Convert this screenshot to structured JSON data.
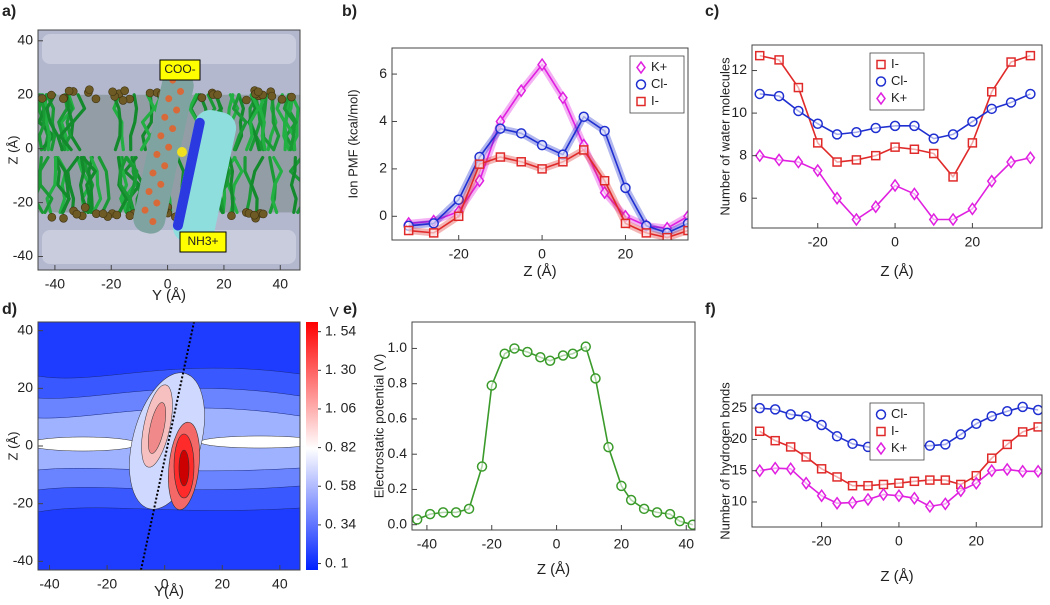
{
  "chart_data": [
    {
      "type": "image",
      "panel_label": "a)",
      "xlabel": "Y (Å)",
      "ylabel": "Z (Å)",
      "xlim": [
        -46,
        47
      ],
      "xticks": [
        -40,
        -20,
        0,
        20,
        40
      ],
      "ylim": [
        -45,
        44
      ],
      "yticks": [
        -40,
        -20,
        0,
        20,
        40
      ],
      "annotations": [
        "COO-",
        "NH3+"
      ]
    },
    {
      "type": "line",
      "panel_label": "b)",
      "xlabel": "Z (Å)",
      "ylabel": "Ion PMF (kcal/mol)",
      "xlim": [
        -36,
        35
      ],
      "xticks": [
        -20,
        0,
        20
      ],
      "ylim": [
        -1,
        7.1
      ],
      "yticks": [
        0,
        2,
        4,
        6
      ],
      "legend": "upper right",
      "x": [
        -32,
        -26,
        -20,
        -15,
        -10,
        -5,
        0,
        5,
        10,
        15,
        20,
        25,
        30,
        35
      ],
      "series": [
        {
          "name": "K+",
          "color": "#e020e0",
          "marker": "diamond",
          "values": [
            -0.3,
            -0.2,
            0.2,
            1.5,
            4.0,
            5.3,
            6.4,
            5.0,
            3.0,
            1.0,
            0.0,
            -0.4,
            -0.5,
            0.0
          ]
        },
        {
          "name": "Cl-",
          "color": "#1f2fd0",
          "marker": "circle",
          "values": [
            -0.4,
            -0.3,
            0.7,
            2.5,
            3.7,
            3.5,
            3.0,
            2.6,
            4.2,
            3.6,
            1.2,
            -0.4,
            -0.7,
            -0.3
          ]
        },
        {
          "name": "I-",
          "color": "#e02a2a",
          "marker": "square",
          "values": [
            -0.6,
            -0.7,
            0.0,
            2.2,
            2.5,
            2.3,
            2.0,
            2.3,
            2.8,
            1.5,
            -0.3,
            -0.7,
            -0.9,
            -0.6
          ]
        }
      ]
    },
    {
      "type": "line",
      "panel_label": "c)",
      "xlabel": "Z (Å)",
      "ylabel": "Number of water molecules",
      "xlim": [
        -37,
        38
      ],
      "xticks": [
        -20,
        0,
        20
      ],
      "ylim": [
        4.6,
        13.2
      ],
      "yticks": [
        6,
        8,
        10,
        12
      ],
      "legend": "upper center",
      "x": [
        -35,
        -30,
        -25,
        -20,
        -15,
        -10,
        -5,
        0,
        5,
        10,
        15,
        20,
        25,
        30,
        35
      ],
      "series": [
        {
          "name": "I-",
          "color": "#e02a2a",
          "marker": "square",
          "values": [
            12.7,
            12.5,
            11.2,
            8.6,
            7.7,
            7.8,
            8.0,
            8.4,
            8.3,
            8.1,
            7.0,
            8.6,
            11.0,
            12.4,
            12.7
          ]
        },
        {
          "name": "Cl-",
          "color": "#1f2fd0",
          "marker": "circle",
          "values": [
            10.9,
            10.8,
            10.1,
            9.5,
            9.0,
            9.1,
            9.3,
            9.4,
            9.4,
            8.8,
            9.0,
            9.6,
            10.2,
            10.5,
            10.9
          ]
        },
        {
          "name": "K+",
          "color": "#e020e0",
          "marker": "diamond",
          "values": [
            8.0,
            7.8,
            7.7,
            7.3,
            6.0,
            5.0,
            5.6,
            6.6,
            6.2,
            5.0,
            5.0,
            5.5,
            6.8,
            7.7,
            7.9
          ]
        }
      ]
    },
    {
      "type": "contour",
      "panel_label": "d)",
      "xlabel": "Y(Å)",
      "ylabel": "Z (Å)",
      "xlim": [
        -44,
        47
      ],
      "xticks": [
        -40,
        -20,
        0,
        20,
        40
      ],
      "ylim": [
        -43,
        43
      ],
      "yticks": [
        -40,
        -20,
        0,
        20,
        40
      ],
      "colorbar": {
        "title": "V",
        "lim": [
          0.06,
          1.6
        ],
        "ticks": [
          {
            "value": 0.1,
            "label": "0. 1"
          },
          {
            "value": 0.34,
            "label": "0. 34"
          },
          {
            "value": 0.58,
            "label": "0. 58"
          },
          {
            "value": 0.82,
            "label": "0. 82"
          },
          {
            "value": 1.06,
            "label": "1. 06"
          },
          {
            "value": 1.3,
            "label": "1. 30"
          },
          {
            "value": 1.54,
            "label": "1. 54"
          }
        ]
      }
    },
    {
      "type": "line",
      "panel_label": "e)",
      "xlabel": "Z (Å)",
      "ylabel": "Electrostatic potential (V)",
      "xlim": [
        -44.6,
        42.7
      ],
      "xticks": [
        -40,
        -20,
        0,
        20,
        40
      ],
      "ylim": [
        -0.03,
        1.15
      ],
      "yticks": [
        {
          "value": 0,
          "label": "0.0"
        },
        0.2,
        0.4,
        0.6,
        0.8,
        {
          "value": 1,
          "label": "1.0"
        }
      ],
      "x": [
        -43,
        -39,
        -35,
        -31,
        -27,
        -23,
        -20,
        -16,
        -13,
        -9,
        -5,
        -2,
        2,
        5,
        9,
        12,
        16,
        20,
        23,
        27,
        31,
        35,
        38,
        42
      ],
      "series": [
        {
          "color": "#3a9a2a",
          "marker": "circle",
          "values": [
            0.03,
            0.06,
            0.07,
            0.07,
            0.09,
            0.33,
            0.79,
            0.97,
            1.0,
            0.98,
            0.95,
            0.93,
            0.96,
            0.97,
            1.01,
            0.83,
            0.44,
            0.22,
            0.14,
            0.09,
            0.07,
            0.06,
            0.02,
            0.0
          ]
        }
      ]
    },
    {
      "type": "line",
      "panel_label": "f)",
      "xlabel": "Z (Å)",
      "ylabel": "Number of hydrogen bonds",
      "xlim": [
        -38,
        37
      ],
      "xticks": [
        -20,
        0,
        20
      ],
      "ylim": [
        6,
        27.1
      ],
      "yticks": [
        10,
        15,
        20,
        25
      ],
      "legend": "upper center",
      "x": [
        -36,
        -32,
        -28,
        -24,
        -20,
        -16,
        -12,
        -8,
        -4,
        0,
        4,
        8,
        12,
        16,
        20,
        24,
        28,
        32,
        36
      ],
      "series": [
        {
          "name": "Cl-",
          "color": "#1f2fd0",
          "marker": "circle",
          "values": [
            25,
            24.8,
            24,
            23.7,
            22.3,
            20.5,
            19.3,
            18.8,
            18.1,
            18.5,
            19,
            19,
            19.2,
            20.8,
            22.5,
            23.7,
            24.5,
            25.2,
            24.7
          ]
        },
        {
          "name": "I-",
          "color": "#e02a2a",
          "marker": "square",
          "values": [
            21.3,
            19.8,
            18.8,
            17.2,
            15.3,
            14.0,
            12.6,
            12.6,
            12.8,
            13.0,
            13.3,
            13.5,
            13.5,
            12.8,
            14.2,
            17.0,
            19.2,
            21.2,
            22
          ]
        },
        {
          "name": "K+",
          "color": "#e020e0",
          "marker": "diamond",
          "values": [
            15,
            15.4,
            15.3,
            13.0,
            11.0,
            9.8,
            9.9,
            10.4,
            11.2,
            11.0,
            10.6,
            9.3,
            9.7,
            11.8,
            13.0,
            15.0,
            15.2,
            14.9,
            14.9
          ]
        }
      ]
    }
  ]
}
